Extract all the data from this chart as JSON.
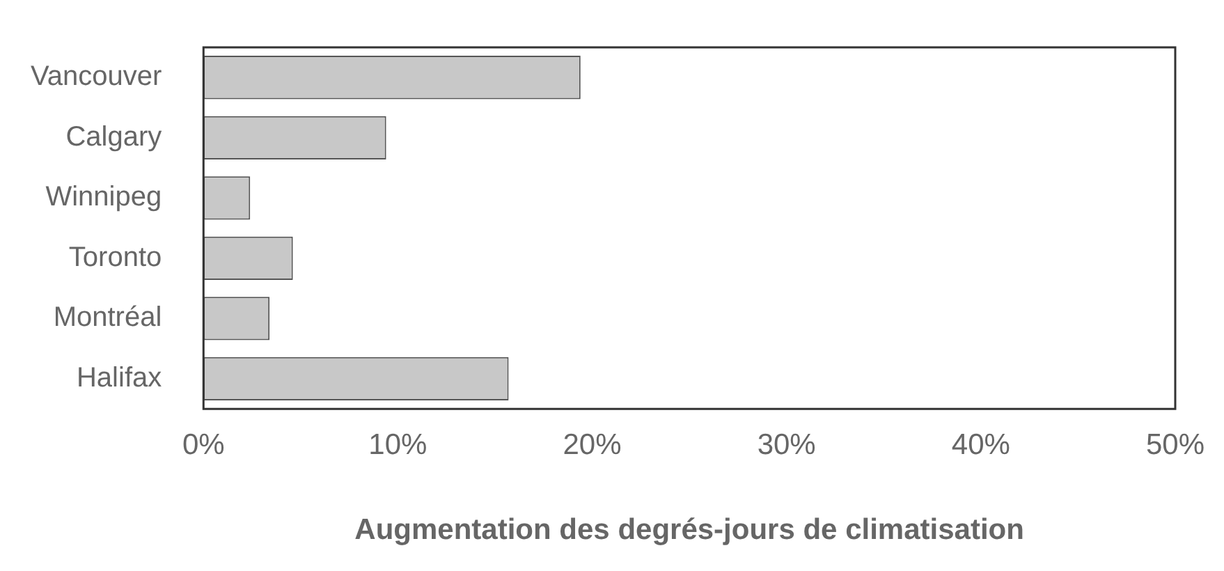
{
  "chart_data": {
    "type": "bar",
    "orientation": "horizontal",
    "xlabel": "Augmentation des degrés-jours de climatisation",
    "categories": [
      "Vancouver",
      "Calgary",
      "Winnipeg",
      "Toronto",
      "Montréal",
      "Halifax"
    ],
    "values": [
      19.4,
      9.4,
      2.4,
      4.6,
      3.4,
      15.7
    ],
    "color": "#c8c8c8",
    "xlim": [
      0,
      50
    ],
    "xticks": [
      {
        "value": 0,
        "label": "0%"
      },
      {
        "value": 10,
        "label": "10%"
      },
      {
        "value": 20,
        "label": "20%"
      },
      {
        "value": 30,
        "label": "30%"
      },
      {
        "value": 40,
        "label": "40%"
      },
      {
        "value": 50,
        "label": "50%"
      }
    ],
    "grid": false,
    "legend": false
  }
}
